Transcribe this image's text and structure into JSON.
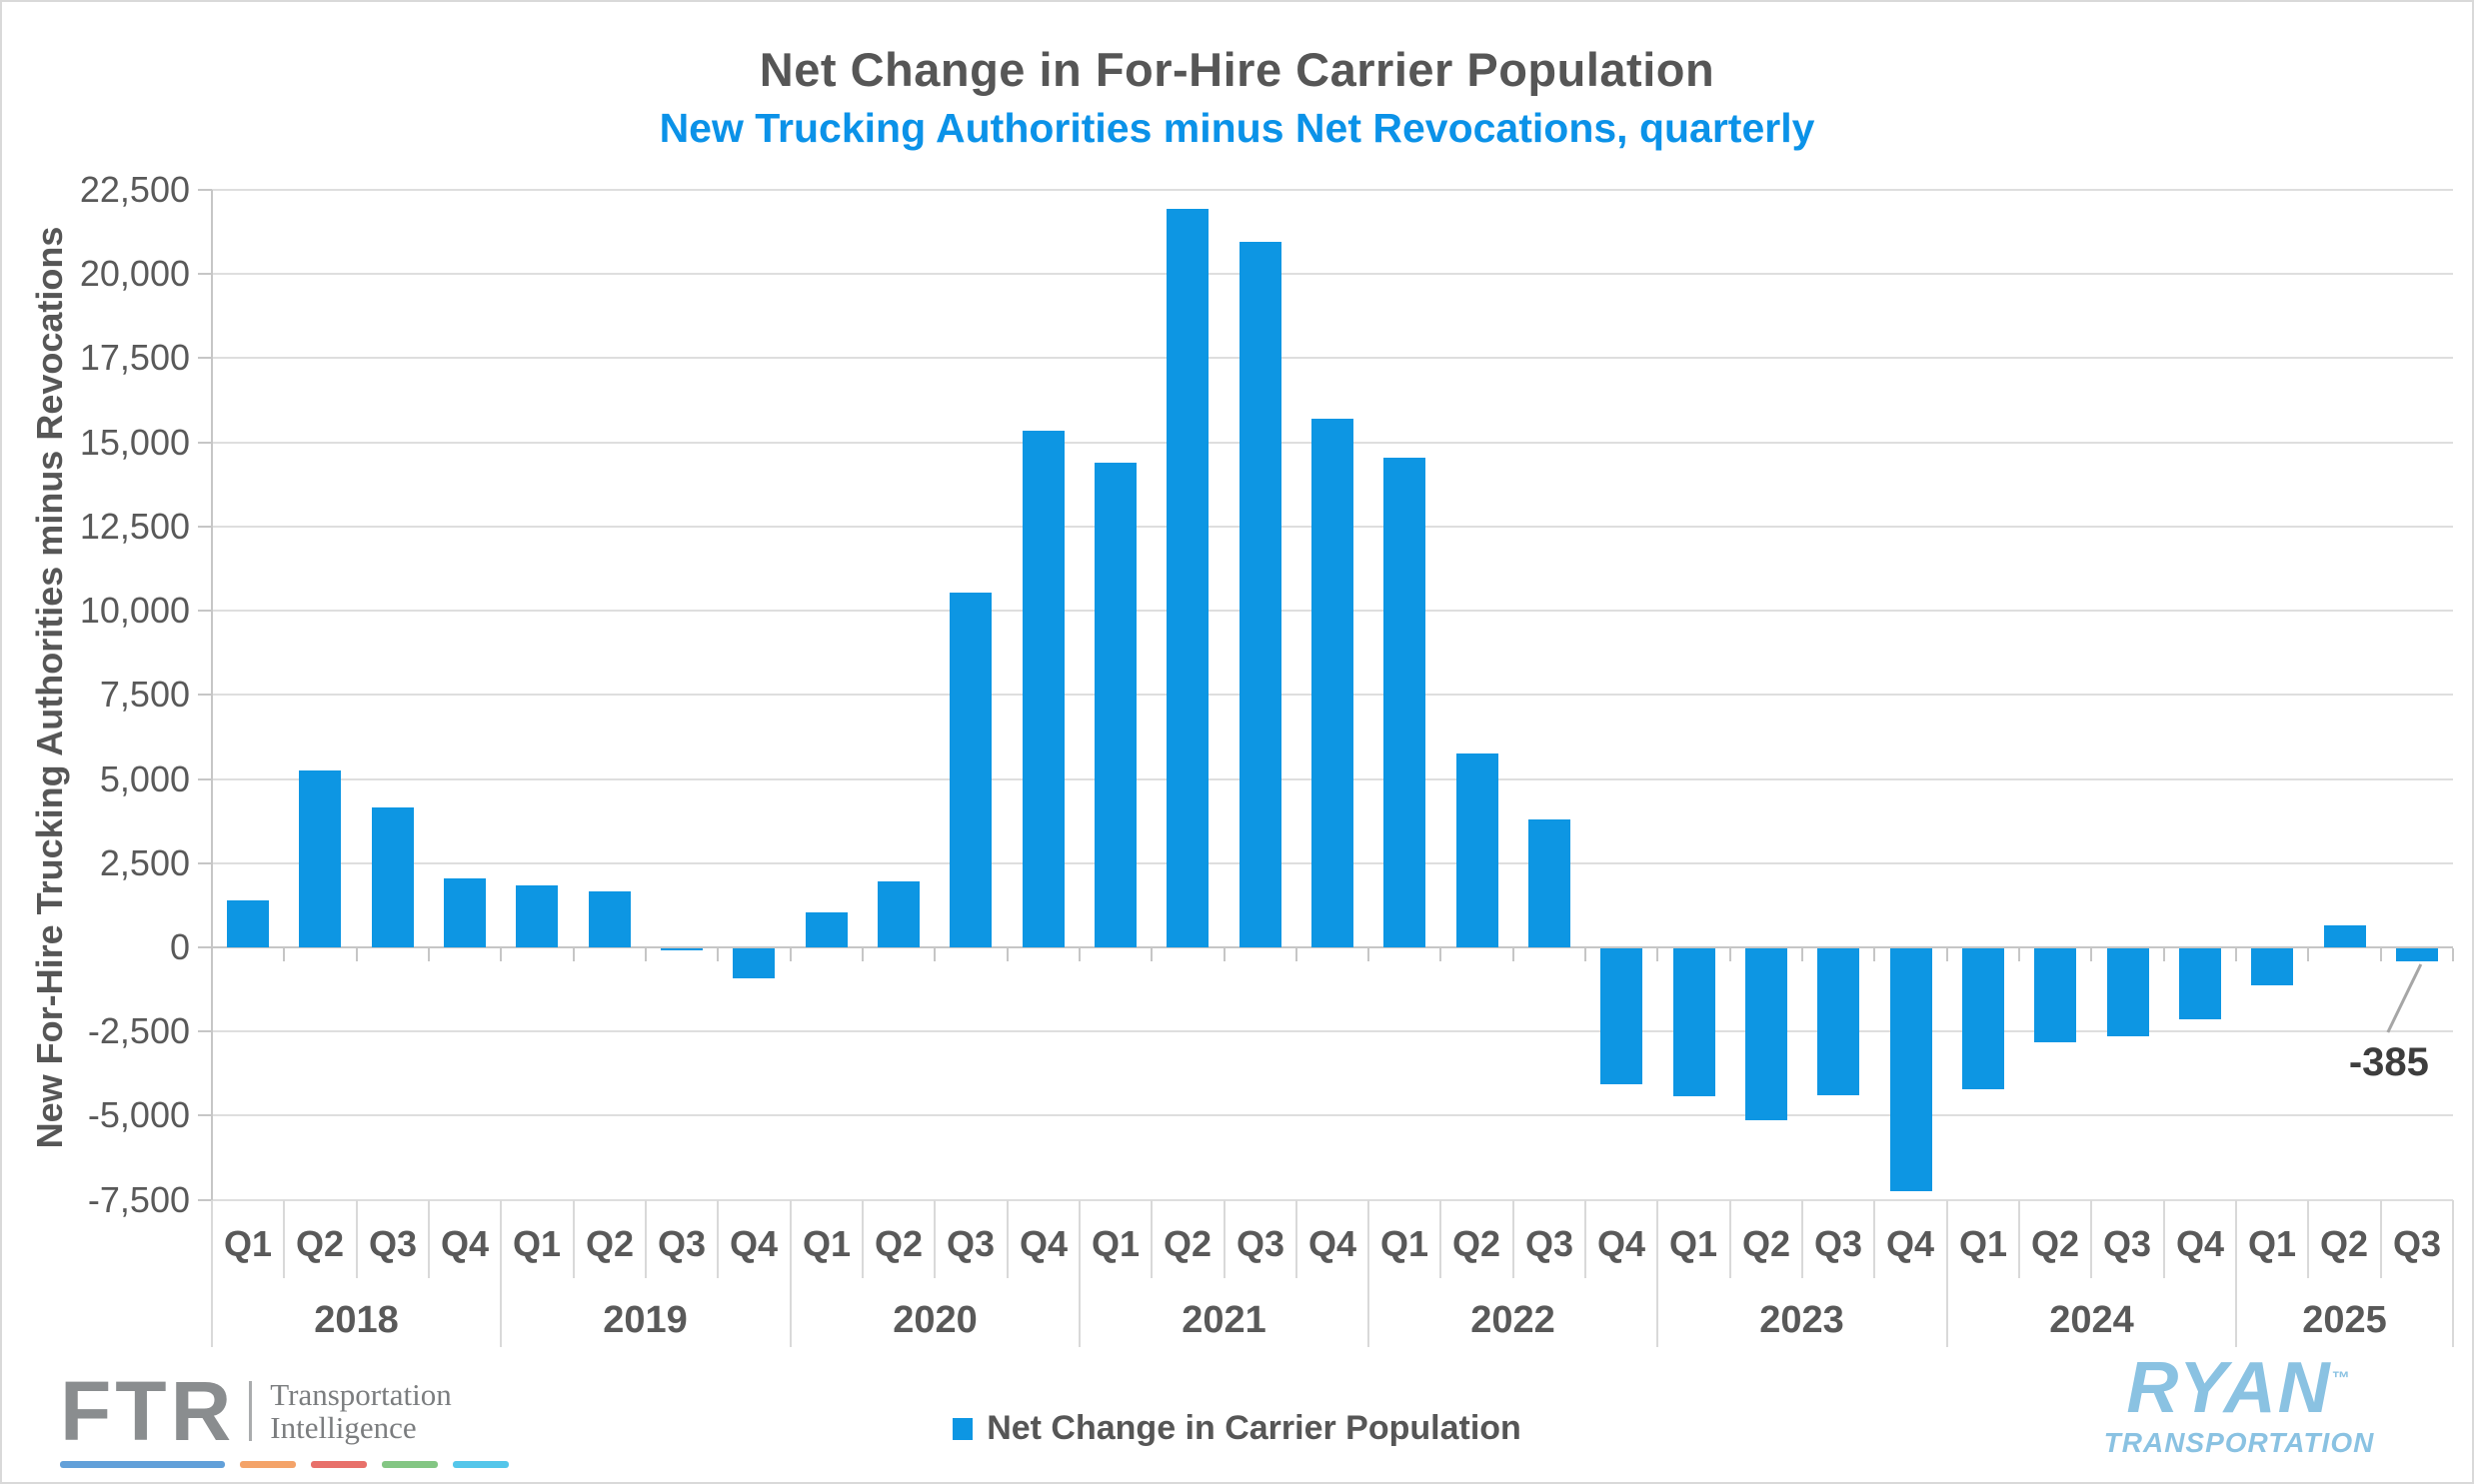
{
  "title": "Net Change in For-Hire Carrier Population",
  "subtitle": "New Trucking Authorities minus Net Revocations, quarterly",
  "y_axis": {
    "title": "New For-Hire Trucking Authorities minus Revocations",
    "ticks": [
      {
        "label": "22,500",
        "value": 22500
      },
      {
        "label": "20,000",
        "value": 20000
      },
      {
        "label": "17,500",
        "value": 17500
      },
      {
        "label": "15,000",
        "value": 15000
      },
      {
        "label": "12,500",
        "value": 12500
      },
      {
        "label": "10,000",
        "value": 10000
      },
      {
        "label": "7,500",
        "value": 7500
      },
      {
        "label": "5,000",
        "value": 5000
      },
      {
        "label": "2,500",
        "value": 2500
      },
      {
        "label": "0",
        "value": 0
      },
      {
        "label": "-2,500",
        "value": -2500
      },
      {
        "label": "-5,000",
        "value": -5000
      },
      {
        "label": "-7,500",
        "value": -7500
      }
    ]
  },
  "chart_data": {
    "type": "bar",
    "title": "Net Change in For-Hire Carrier Population",
    "subtitle": "New Trucking Authorities minus Net Revocations, quarterly",
    "ylabel": "New For-Hire Trucking Authorities minus Revocations",
    "xlabel": "",
    "ylim": [
      -7500,
      22500
    ],
    "ytick_step": 2500,
    "grid": "horizontal",
    "legend_position": "bottom-center",
    "series_name": "Net Change in Carrier Population",
    "bar_color": "#0d96e3",
    "groups": [
      {
        "year": "2018",
        "points": [
          {
            "q": "Q1",
            "v": 1400
          },
          {
            "q": "Q2",
            "v": 5250
          },
          {
            "q": "Q3",
            "v": 4150
          },
          {
            "q": "Q4",
            "v": 2050
          }
        ]
      },
      {
        "year": "2019",
        "points": [
          {
            "q": "Q1",
            "v": 1850
          },
          {
            "q": "Q2",
            "v": 1650
          },
          {
            "q": "Q3",
            "v": -50
          },
          {
            "q": "Q4",
            "v": -900
          }
        ]
      },
      {
        "year": "2020",
        "points": [
          {
            "q": "Q1",
            "v": 1050
          },
          {
            "q": "Q2",
            "v": 1950
          },
          {
            "q": "Q3",
            "v": 10550
          },
          {
            "q": "Q4",
            "v": 15350
          }
        ]
      },
      {
        "year": "2021",
        "points": [
          {
            "q": "Q1",
            "v": 14400
          },
          {
            "q": "Q2",
            "v": 21950
          },
          {
            "q": "Q3",
            "v": 20950
          },
          {
            "q": "Q4",
            "v": 15700
          }
        ]
      },
      {
        "year": "2022",
        "points": [
          {
            "q": "Q1",
            "v": 14550
          },
          {
            "q": "Q2",
            "v": 5750
          },
          {
            "q": "Q3",
            "v": 3800
          },
          {
            "q": "Q4",
            "v": -4050
          }
        ]
      },
      {
        "year": "2023",
        "points": [
          {
            "q": "Q1",
            "v": -4400
          },
          {
            "q": "Q2",
            "v": -5100
          },
          {
            "q": "Q3",
            "v": -4350
          },
          {
            "q": "Q4",
            "v": -7200
          }
        ]
      },
      {
        "year": "2024",
        "points": [
          {
            "q": "Q1",
            "v": -4200
          },
          {
            "q": "Q2",
            "v": -2800
          },
          {
            "q": "Q3",
            "v": -2600
          },
          {
            "q": "Q4",
            "v": -2100
          }
        ]
      },
      {
        "year": "2025",
        "points": [
          {
            "q": "Q1",
            "v": -1100
          },
          {
            "q": "Q2",
            "v": 650
          },
          {
            "q": "Q3",
            "v": -385
          }
        ]
      }
    ],
    "annotation": {
      "text": "-385",
      "year": "2025",
      "quarter": "Q3",
      "category_index": 30
    }
  },
  "legend": {
    "label": "Net Change in Carrier Population",
    "swatch_color": "#0d96e3"
  },
  "branding": {
    "ftr": {
      "name": "FTR",
      "tagline_line1": "Transportation",
      "tagline_line2": "Intelligence",
      "dash_colors": [
        "#62a0d9",
        "#f4a369",
        "#e8706a",
        "#83c683",
        "#54c6ea"
      ]
    },
    "ryan": {
      "name": "RYAN",
      "tm": "™",
      "tagline": "TRANSPORTATION",
      "color": "#8ac2e2"
    }
  },
  "colors": {
    "title_text": "#565656",
    "subtitle_text": "#0b92e8",
    "axis_text": "#595959",
    "gridline": "#dedede",
    "axis_line": "#c6c6c6",
    "bar": "#0d96e3",
    "annotation_text": "#3d3d3d"
  }
}
